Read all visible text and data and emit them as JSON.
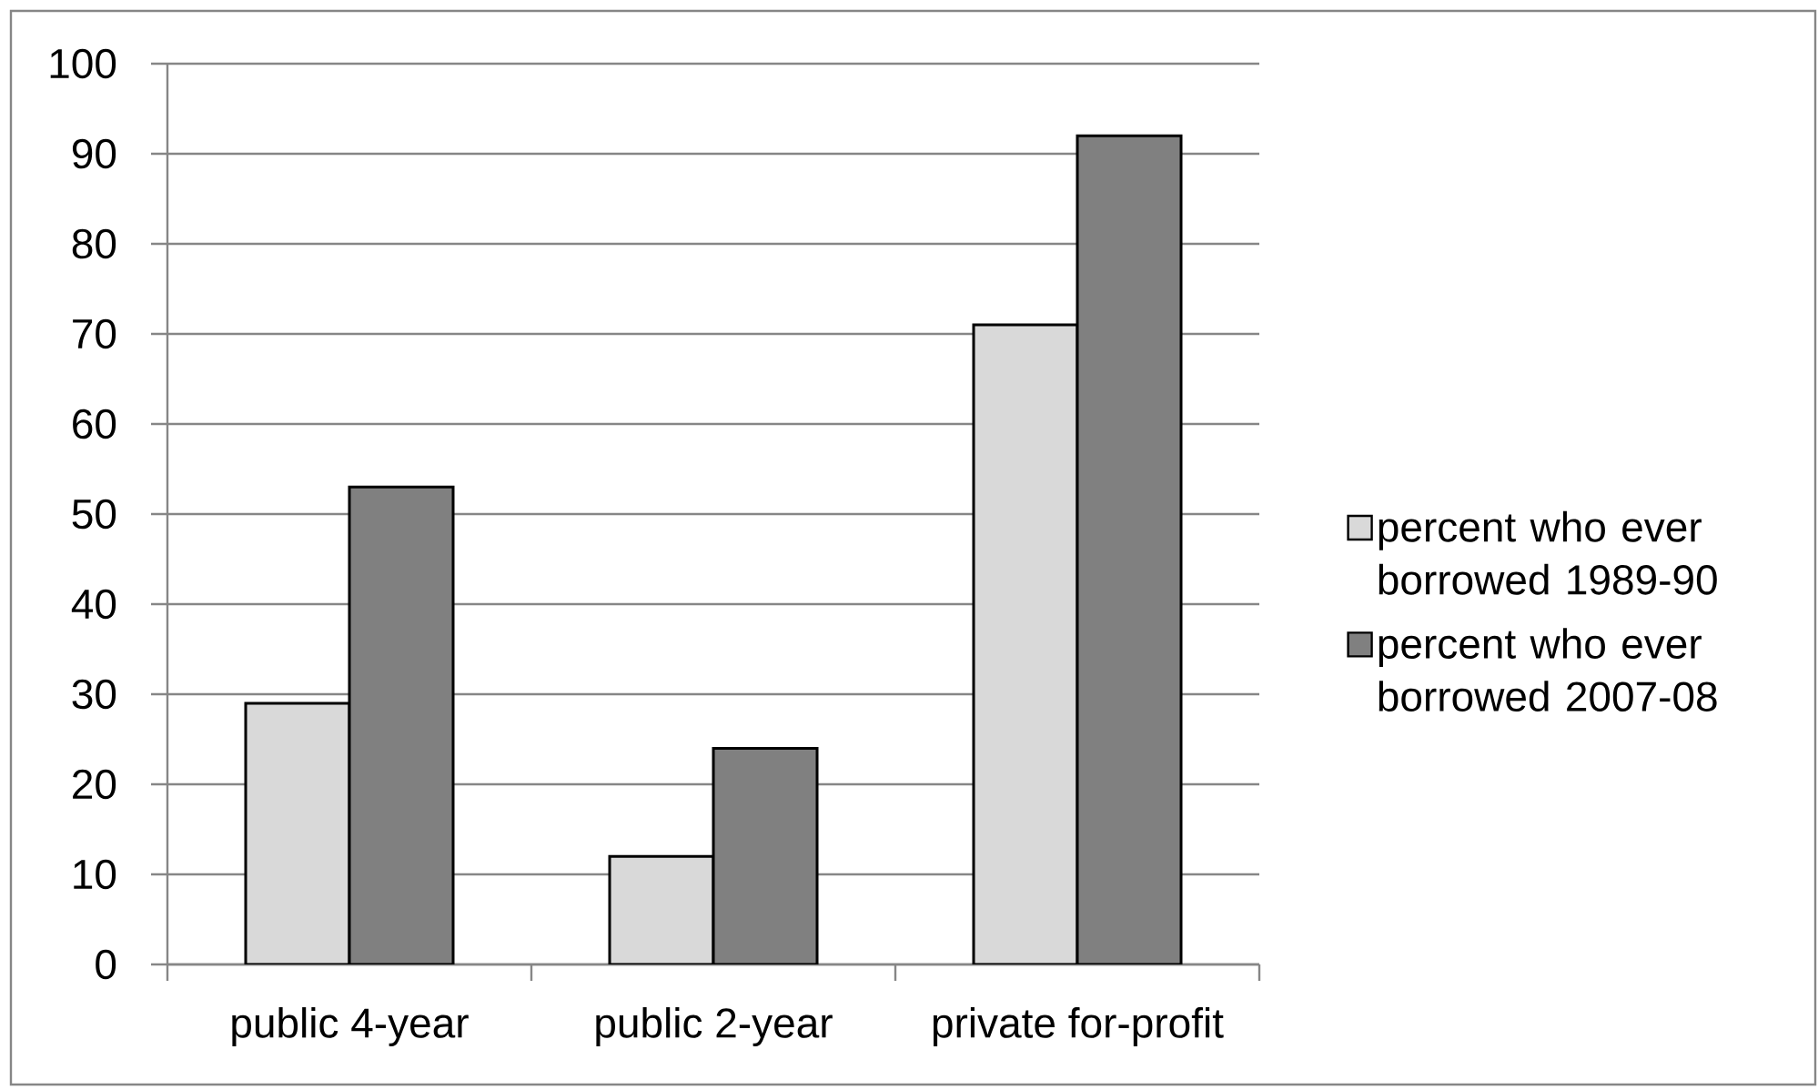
{
  "chart_data": {
    "type": "bar",
    "categories": [
      "public 4-year",
      "public 2-year",
      "private for-profit"
    ],
    "series": [
      {
        "name": "percent who ever borrowed 1989-90",
        "color": "#d9d9d9",
        "values": [
          29,
          12,
          71
        ]
      },
      {
        "name": "percent who ever borrowed 2007-08",
        "color": "#808080",
        "values": [
          53,
          24,
          92
        ]
      }
    ],
    "ylim": [
      0,
      100
    ],
    "yticks": [
      0,
      10,
      20,
      30,
      40,
      50,
      60,
      70,
      80,
      90,
      100
    ],
    "grid": "y",
    "legend": "right"
  }
}
